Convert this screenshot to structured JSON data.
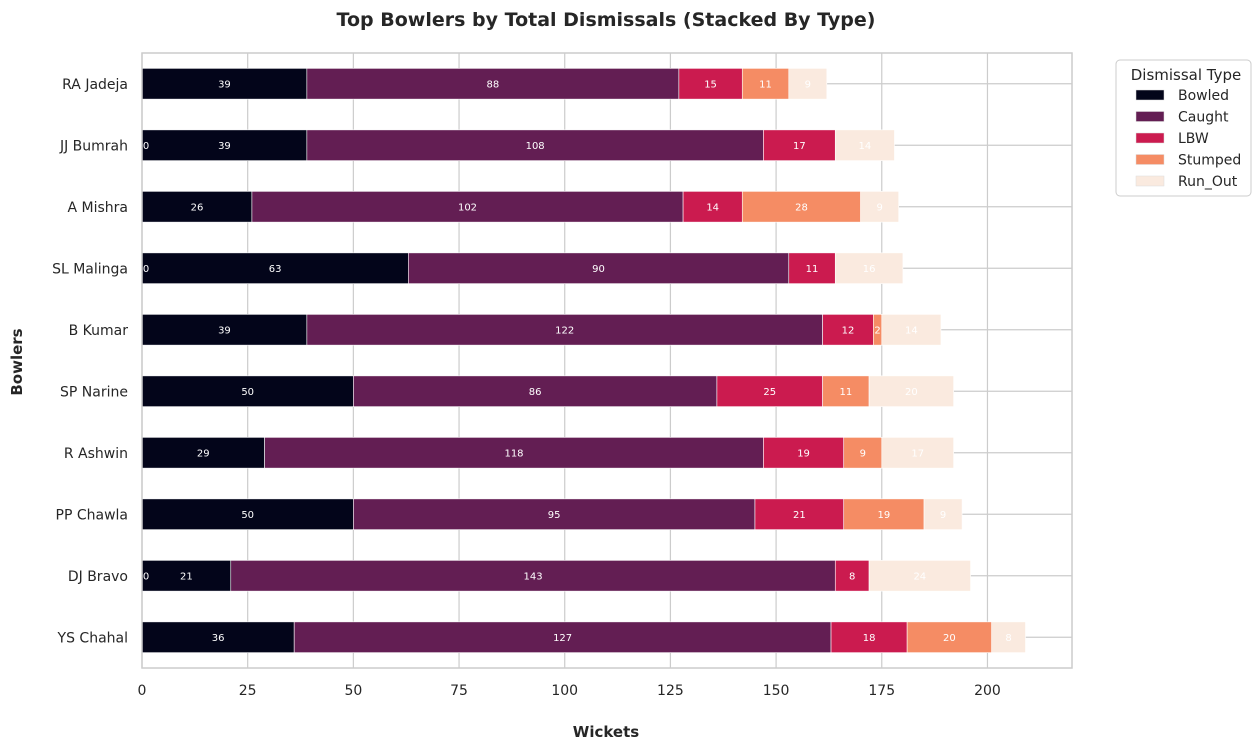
{
  "chart_data": {
    "type": "bar",
    "orientation": "horizontal",
    "stacked": true,
    "title": "Top Bowlers by Total Dismissals (Stacked By Type)",
    "xlabel": "Wickets",
    "ylabel": "Bowlers",
    "xlim": [
      0,
      220
    ],
    "xticks": [
      0,
      25,
      50,
      75,
      100,
      125,
      150,
      175,
      200
    ],
    "grid": true,
    "legend_title": "Dismissal Type",
    "legend_position": "outside-top-right",
    "categories": [
      "RA Jadeja",
      "JJ Bumrah",
      "A Mishra",
      "SL Malinga",
      "B Kumar",
      "SP Narine",
      "R Ashwin",
      "PP Chawla",
      "DJ Bravo",
      "YS Chahal"
    ],
    "series": [
      {
        "name": "Bowled",
        "color": "#03051a",
        "values": [
          39,
          39,
          26,
          63,
          39,
          50,
          29,
          50,
          21,
          36
        ]
      },
      {
        "name": "Caught",
        "color": "#631e53",
        "values": [
          88,
          108,
          102,
          90,
          122,
          86,
          118,
          95,
          143,
          127
        ]
      },
      {
        "name": "LBW",
        "color": "#cb1b4f",
        "values": [
          15,
          17,
          14,
          11,
          12,
          25,
          19,
          21,
          8,
          18
        ]
      },
      {
        "name": "Stumped",
        "color": "#f58c64",
        "values": [
          11,
          0,
          28,
          0,
          2,
          11,
          9,
          19,
          0,
          20
        ]
      },
      {
        "name": "Run_Out",
        "color": "#faeadf",
        "values": [
          9,
          14,
          9,
          16,
          14,
          20,
          17,
          9,
          24,
          8
        ]
      }
    ],
    "zero_labels_shown_for": [
      "JJ Bumrah",
      "SL Malinga",
      "DJ Bravo"
    ]
  }
}
